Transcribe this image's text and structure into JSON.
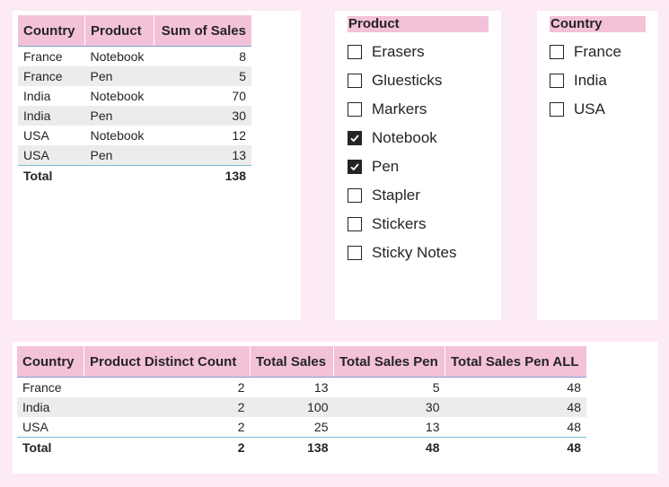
{
  "top_table": {
    "headers": [
      "Country",
      "Product",
      "Sum of Sales"
    ],
    "rows": [
      [
        "France",
        "Notebook",
        "8"
      ],
      [
        "France",
        "Pen",
        "5"
      ],
      [
        "India",
        "Notebook",
        "70"
      ],
      [
        "India",
        "Pen",
        "30"
      ],
      [
        "USA",
        "Notebook",
        "12"
      ],
      [
        "USA",
        "Pen",
        "13"
      ]
    ],
    "total": [
      "Total",
      "",
      "138"
    ]
  },
  "product_slicer": {
    "title": "Product",
    "items": [
      {
        "label": "Erasers",
        "checked": false
      },
      {
        "label": "Gluesticks",
        "checked": false
      },
      {
        "label": "Markers",
        "checked": false
      },
      {
        "label": "Notebook",
        "checked": true
      },
      {
        "label": "Pen",
        "checked": true
      },
      {
        "label": "Stapler",
        "checked": false
      },
      {
        "label": "Stickers",
        "checked": false
      },
      {
        "label": "Sticky Notes",
        "checked": false
      }
    ]
  },
  "country_slicer": {
    "title": "Country",
    "items": [
      {
        "label": "France",
        "checked": false
      },
      {
        "label": "India",
        "checked": false
      },
      {
        "label": "USA",
        "checked": false
      }
    ]
  },
  "bottom_table": {
    "headers": [
      "Country",
      "Product Distinct Count",
      "Total Sales",
      "Total Sales Pen",
      "Total Sales Pen ALL"
    ],
    "rows": [
      [
        "France",
        "2",
        "13",
        "5",
        "48"
      ],
      [
        "India",
        "2",
        "100",
        "30",
        "48"
      ],
      [
        "USA",
        "2",
        "25",
        "13",
        "48"
      ]
    ],
    "total": [
      "Total",
      "2",
      "138",
      "48",
      "48"
    ]
  }
}
